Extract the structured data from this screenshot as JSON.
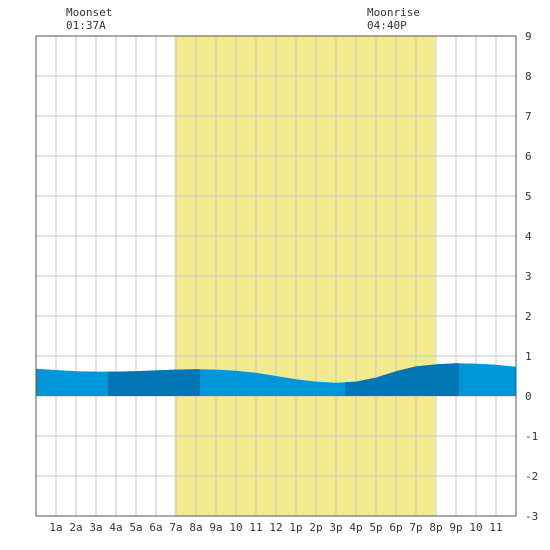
{
  "moon": {
    "moonset_label": "Moonset",
    "moonset_time": "01:37A",
    "moonrise_label": "Moonrise",
    "moonrise_time": "04:40P"
  },
  "chart_data": {
    "type": "area",
    "title": "",
    "xlabel": "",
    "ylabel": "",
    "x_tick_labels": [
      "1a",
      "2a",
      "3a",
      "4a",
      "5a",
      "6a",
      "7a",
      "8a",
      "9a",
      "10",
      "11",
      "12",
      "1p",
      "2p",
      "3p",
      "4p",
      "5p",
      "6p",
      "7p",
      "8p",
      "9p",
      "10",
      "11"
    ],
    "x_range_hours": [
      0,
      24
    ],
    "ylim": [
      -3,
      9
    ],
    "y_ticks": [
      -3,
      -2,
      -1,
      0,
      1,
      2,
      3,
      4,
      5,
      6,
      7,
      8,
      9
    ],
    "grid": true,
    "daylight_hours": [
      6.93,
      19.95
    ],
    "moonset_hour": 1.62,
    "moonrise_hour": 16.67,
    "series": [
      {
        "x": [
          0,
          1,
          2,
          3,
          4,
          5,
          6,
          7,
          8,
          9,
          10,
          11,
          12,
          13,
          14,
          15,
          16,
          17,
          18,
          19,
          20,
          21,
          22,
          23,
          24
        ],
        "values": [
          0.68,
          0.65,
          0.62,
          0.61,
          0.61,
          0.62,
          0.64,
          0.66,
          0.67,
          0.66,
          0.63,
          0.58,
          0.5,
          0.42,
          0.36,
          0.33,
          0.36,
          0.46,
          0.62,
          0.74,
          0.79,
          0.82,
          0.81,
          0.78,
          0.73
        ]
      }
    ],
    "dark_bands": [
      [
        3.6,
        8.2
      ],
      [
        15.45,
        21.15
      ]
    ],
    "colors": {
      "daylight": "#f2ea8c",
      "water": "#0097d8",
      "water_dark": "#0077b4",
      "grid": "#c8c8c8",
      "background": "#ffffff"
    }
  }
}
